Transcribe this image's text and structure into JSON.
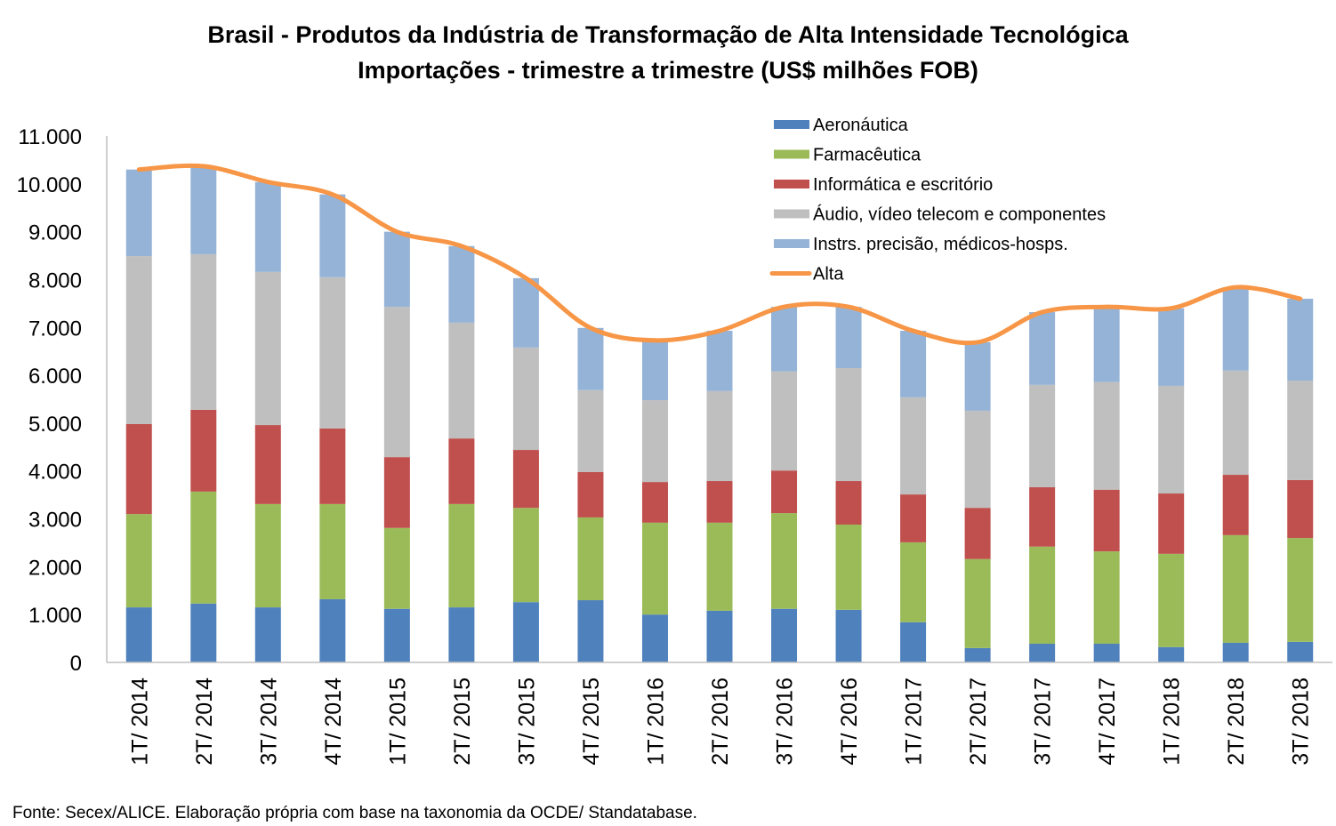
{
  "chart_data": {
    "type": "bar",
    "stacked": true,
    "title": "Brasil - Produtos da Indústria de Transformação de Alta Intensidade Tecnológica",
    "subtitle": "Importações - trimestre a trimestre (US$ milhões FOB)",
    "xlabel": "",
    "ylabel": "",
    "ylim": [
      0,
      11000
    ],
    "yticks": [
      0,
      1000,
      2000,
      3000,
      4000,
      5000,
      6000,
      7000,
      8000,
      9000,
      10000,
      11000
    ],
    "ytick_labels": [
      "0",
      "1.000",
      "2.000",
      "3.000",
      "4.000",
      "5.000",
      "6.000",
      "7.000",
      "8.000",
      "9.000",
      "10.000",
      "11.000"
    ],
    "grid": false,
    "legend_position": "top-right",
    "categories": [
      "1T/ 2014",
      "2T/ 2014",
      "3T/ 2014",
      "4T/ 2014",
      "1T/ 2015",
      "2T/ 2015",
      "3T/ 2015",
      "4T/ 2015",
      "1T/ 2016",
      "2T/ 2016",
      "3T/ 2016",
      "4T/ 2016",
      "1T/ 2017",
      "2T/ 2017",
      "3T/ 2017",
      "4T/ 2017",
      "1T/ 2018",
      "2T/ 2018",
      "3T/ 2018"
    ],
    "series": [
      {
        "name": "Aeronáutica",
        "type": "bar",
        "color": "#4f81bd",
        "values": [
          1150,
          1230,
          1150,
          1320,
          1120,
          1150,
          1260,
          1300,
          1000,
          1080,
          1120,
          1100,
          840,
          300,
          390,
          390,
          320,
          410,
          430
        ]
      },
      {
        "name": "Farmacêutica",
        "type": "bar",
        "color": "#9bbb59",
        "values": [
          1950,
          2340,
          2160,
          1990,
          1690,
          2160,
          1970,
          1730,
          1920,
          1840,
          2000,
          1780,
          1670,
          1860,
          2030,
          1930,
          1950,
          2250,
          2170
        ]
      },
      {
        "name": "Informática e escritório",
        "type": "bar",
        "color": "#c0504d",
        "values": [
          1880,
          1710,
          1650,
          1580,
          1480,
          1370,
          1210,
          950,
          850,
          870,
          890,
          910,
          1000,
          1070,
          1240,
          1290,
          1260,
          1260,
          1210
        ]
      },
      {
        "name": "Áudio, vídeo telecom e componentes",
        "type": "bar",
        "color": "#bfbfbf",
        "values": [
          3510,
          3250,
          3200,
          3160,
          3140,
          2420,
          2140,
          1710,
          1710,
          1880,
          2070,
          2360,
          2030,
          2030,
          2140,
          2250,
          2250,
          2180,
          2080
        ]
      },
      {
        "name": "Instrs. precisão, médicos-hosps.",
        "type": "bar",
        "color": "#95b3d7",
        "values": [
          1810,
          1840,
          1880,
          1730,
          1570,
          1600,
          1450,
          1300,
          1250,
          1260,
          1350,
          1280,
          1390,
          1430,
          1520,
          1570,
          1620,
          1740,
          1710
        ]
      },
      {
        "name": "Alta",
        "type": "line",
        "smooth": true,
        "color": "#f79646",
        "values": [
          10300,
          10370,
          10040,
          9780,
          9000,
          8700,
          8030,
          6990,
          6730,
          6930,
          7430,
          7430,
          6930,
          6690,
          7320,
          7430,
          7400,
          7840,
          7600
        ]
      }
    ],
    "source_note": "Fonte: Secex/ALICE. Elaboração própria com base na taxonomia da OCDE/ Standatabase."
  }
}
